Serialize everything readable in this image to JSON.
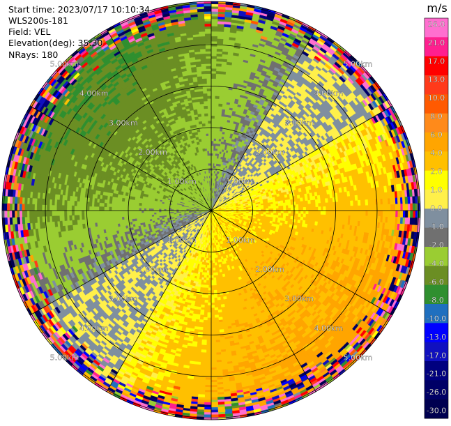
{
  "header": {
    "start_time": "Start time: 2023/07/17 10:10:34",
    "site": "WLS200s-181",
    "field": "Field: VEL",
    "elevation": "Elevation(deg): 35.30",
    "nrays": "NRays: 180"
  },
  "colorbar": {
    "unit": "m/s",
    "ticks": [
      "26.0",
      "21.0",
      "17.0",
      "13.0",
      "10.0",
      "8.0",
      "6.0",
      "4.0",
      "2.0",
      "1.0",
      "0.0",
      "-1.0",
      "-2.0",
      "-4.0",
      "-6.0",
      "-8.0",
      "-10.0",
      "-13.0",
      "-17.0",
      "-21.0",
      "-26.0",
      "-30.0"
    ],
    "colors": [
      "#ff6fcf",
      "#ff1f8f",
      "#ff0000",
      "#ff3a1a",
      "#ff5a00",
      "#ff8a1a",
      "#ffa500",
      "#ffc000",
      "#ffff00",
      "#fff04a",
      "#7f8f9f",
      "#707070",
      "#9acd32",
      "#6b8e23",
      "#2f8f2f",
      "#1f6fbf",
      "#0000ff",
      "#1010c0",
      "#00007f",
      "#000066",
      "#000050"
    ]
  },
  "chart_data": {
    "type": "heatmap",
    "title": "",
    "field": "VEL",
    "units": "m/s",
    "nrays": 180,
    "elevation_deg": 35.3,
    "range_rings_km": [
      1.0,
      2.0,
      3.0,
      4.0,
      5.0
    ],
    "range_labels": [
      "1.00km",
      "2.00km",
      "3.00km",
      "4.00km",
      "5.00km"
    ],
    "color_scale_min": -30.0,
    "color_scale_max": 26.0,
    "dominant_pattern": {
      "northwest_velocity_m_s": -5.0,
      "southeast_velocity_m_s": 4.0,
      "outer_ring_noise_beyond_km": 4.3
    }
  }
}
